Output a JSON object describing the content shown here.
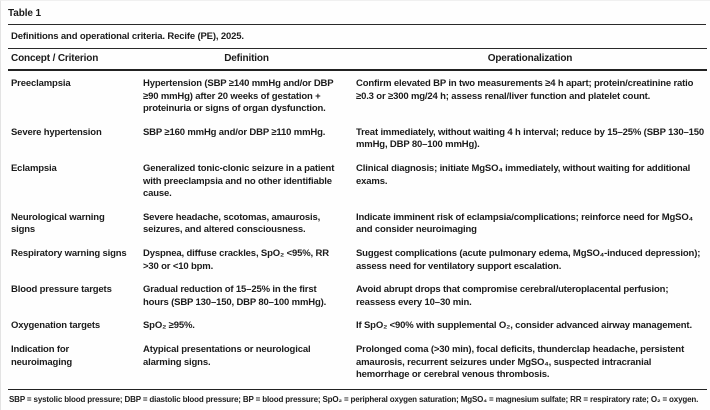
{
  "table": {
    "label": "Table 1",
    "caption": "Definitions and operational criteria. Recife (PE), 2025.",
    "columns": [
      "Concept / Criterion",
      "Definition",
      "Operationalization"
    ],
    "rows": [
      {
        "concept": "Preeclampsia",
        "definition": "Hypertension (SBP ≥140 mmHg and/or DBP ≥90 mmHg) after 20 weeks of gestation + proteinuria or signs of organ dysfunction.",
        "operationalization": "Confirm elevated BP in two measurements ≥4 h apart; protein/creatinine ratio ≥0.3 or ≥300 mg/24 h; assess renal/liver function and platelet count."
      },
      {
        "concept": "Severe hypertension",
        "definition": "SBP ≥160 mmHg and/or DBP ≥110 mmHg.",
        "operationalization": "Treat immediately, without waiting 4 h interval; reduce by 15–25% (SBP 130–150 mmHg, DBP 80–100 mmHg)."
      },
      {
        "concept": "Eclampsia",
        "definition": "Generalized tonic-clonic seizure in a patient with preeclampsia and no other identifiable cause.",
        "operationalization": "Clinical diagnosis; initiate MgSO₄ immediately, without waiting for additional exams."
      },
      {
        "concept": "Neurological warning signs",
        "definition": "Severe headache, scotomas, amaurosis, seizures, and altered consciousness.",
        "operationalization": "Indicate imminent risk of eclampsia/complications; reinforce need for MgSO₄ and consider neuroimaging"
      },
      {
        "concept": "Respiratory warning signs",
        "definition": "Dyspnea, diffuse crackles, SpO₂ <95%, RR >30 or <10 bpm.",
        "operationalization": "Suggest complications (acute pulmonary edema, MgSO₄-induced depression); assess need for ventilatory support escalation."
      },
      {
        "concept": "Blood pressure targets",
        "definition": "Gradual reduction of 15–25% in the first hours (SBP 130–150, DBP 80–100 mmHg).",
        "operationalization": "Avoid abrupt drops that compromise cerebral/uteroplacental perfusion; reassess every 10–30 min."
      },
      {
        "concept": "Oxygenation targets",
        "definition": "SpO₂ ≥95%.",
        "operationalization": "If SpO₂ <90% with supplemental O₂, consider advanced airway management."
      },
      {
        "concept": "Indication for neuroimaging",
        "definition": "Atypical presentations or neurological alarming signs.",
        "operationalization": "Prolonged coma (>30 min), focal deficits, thunderclap headache, persistent amaurosis, recurrent seizures under MgSO₄, suspected intracranial hemorrhage or cerebral venous thrombosis."
      }
    ],
    "footnote": "SBP = systolic blood pressure; DBP = diastolic blood pressure; BP = blood pressure; SpO₂ = peripheral oxygen saturation; MgSO₄ = magnesium sulfate; RR = respiratory rate; O₂ = oxygen."
  }
}
